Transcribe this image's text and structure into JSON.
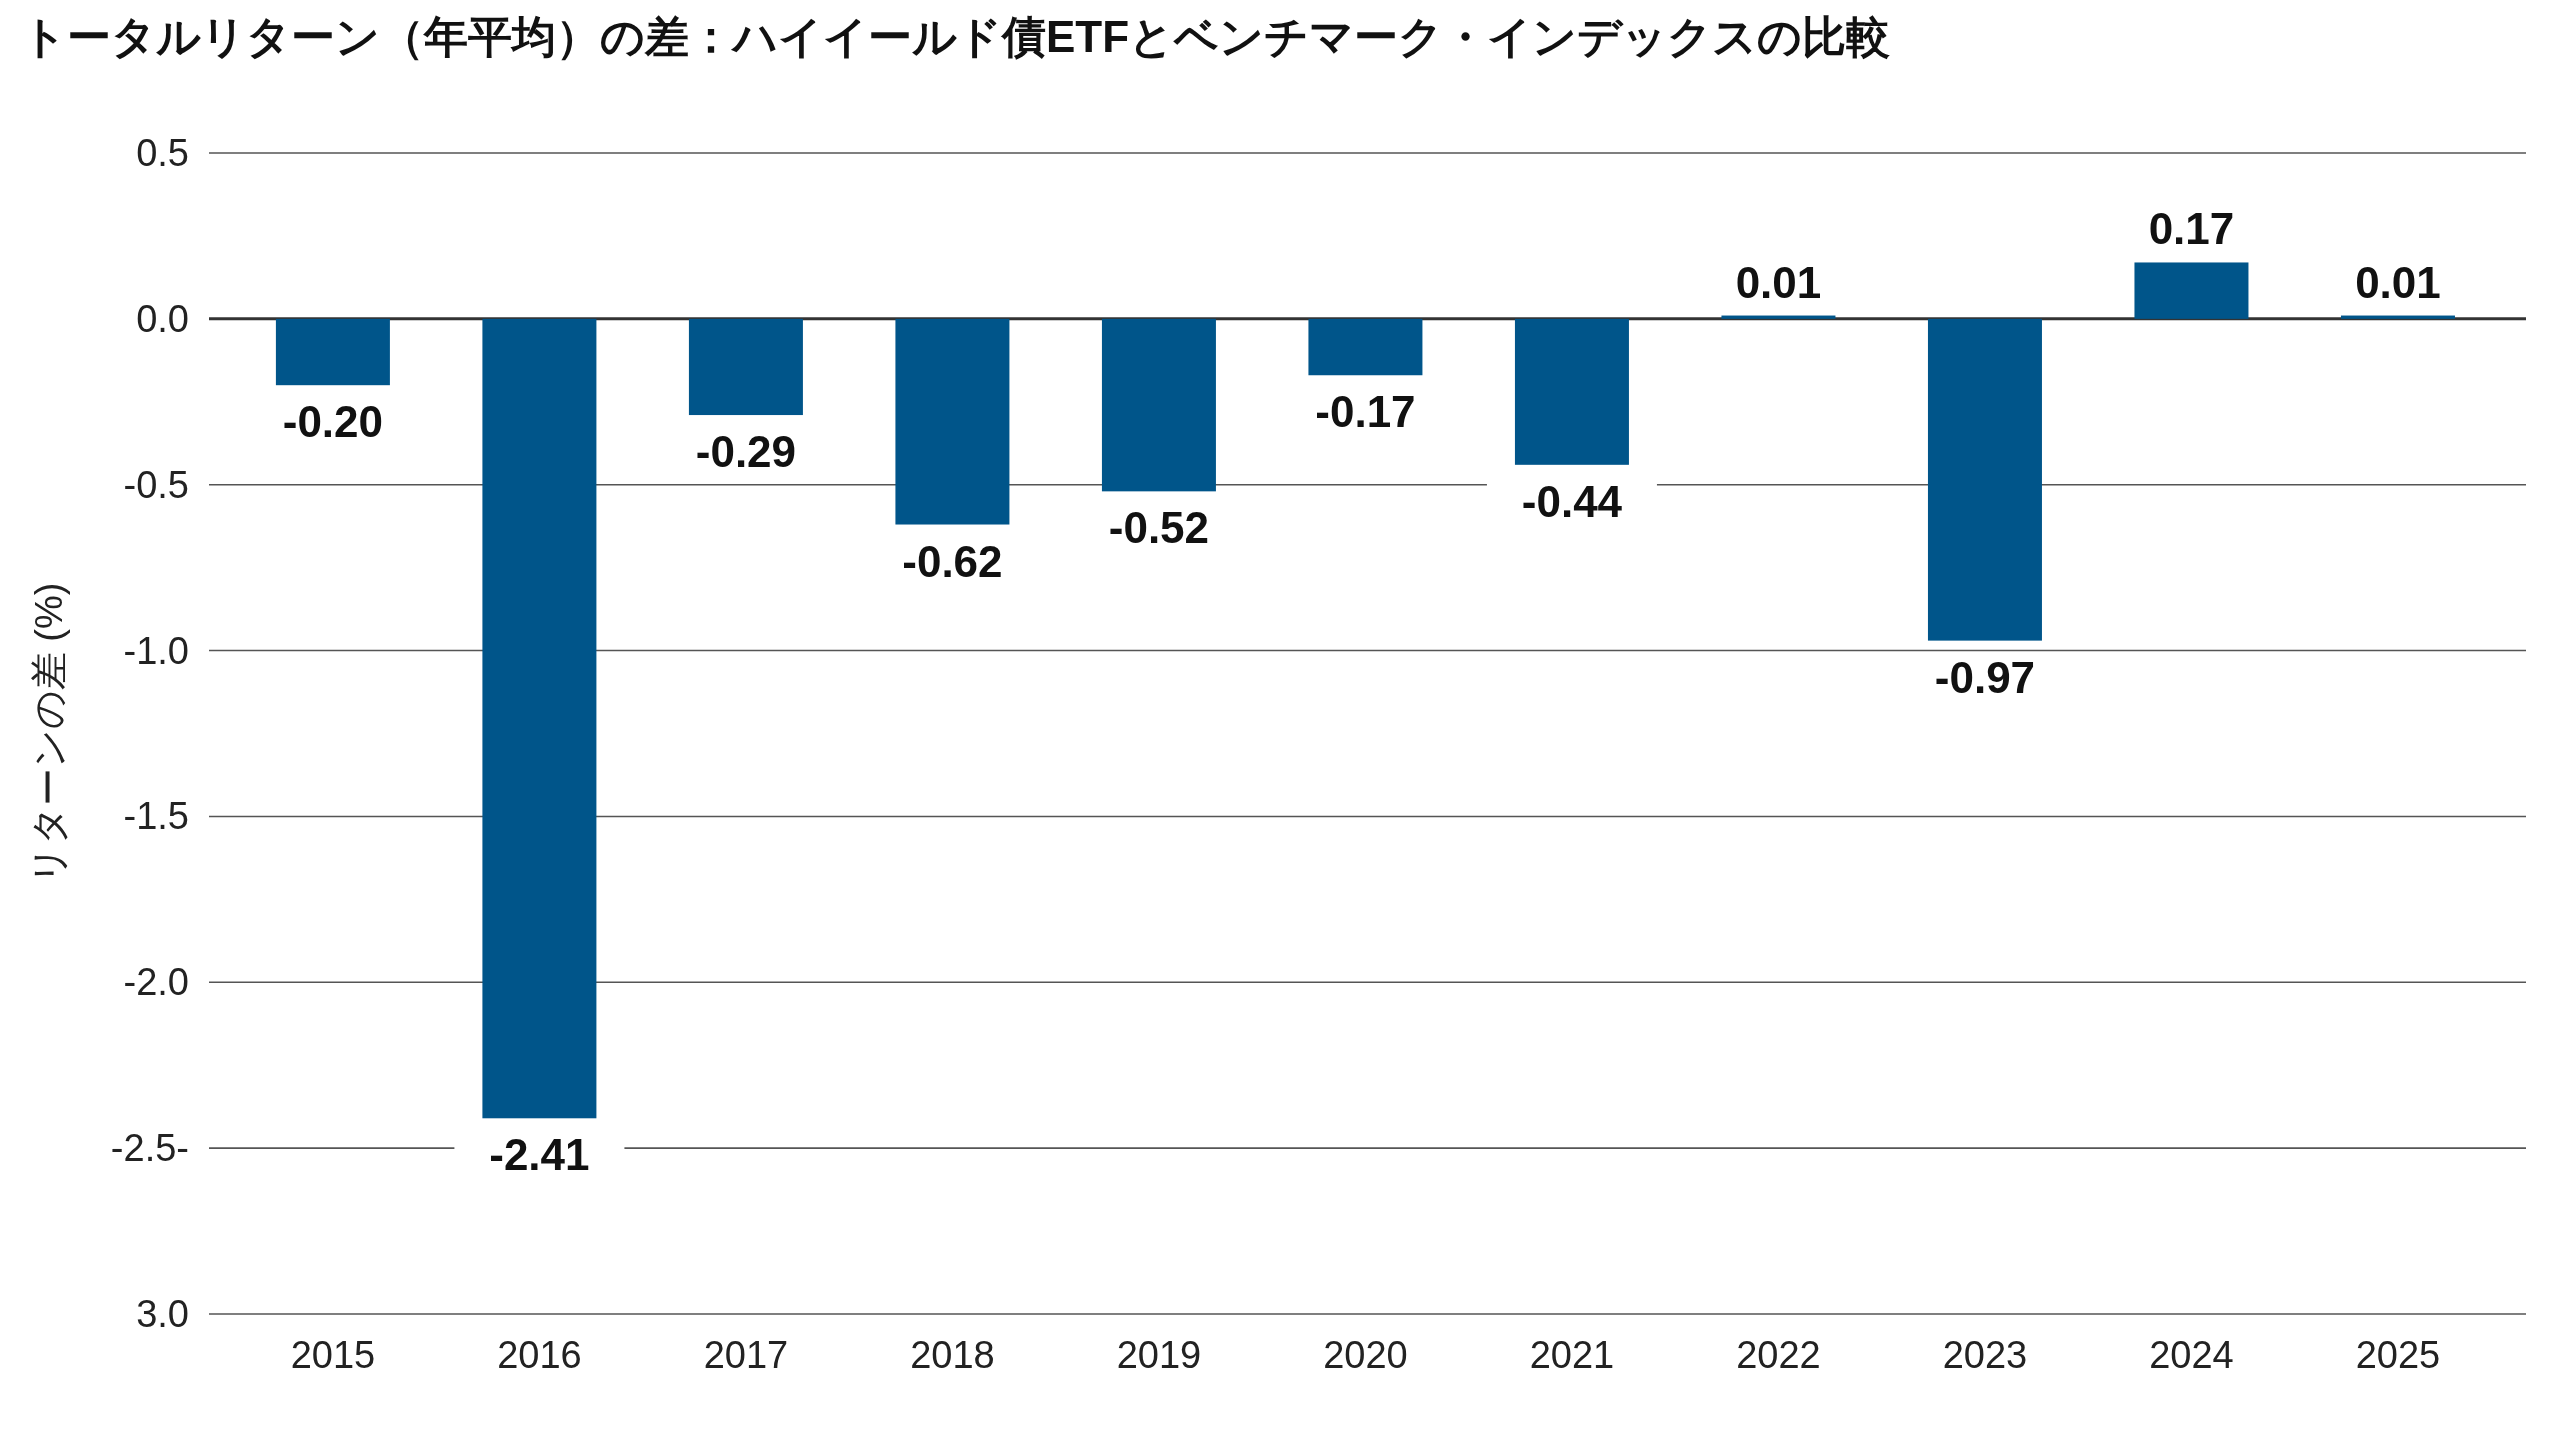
{
  "chart_data": {
    "type": "bar",
    "title": "トータルリターン（年平均）の差：ハイイールド債ETFとベンチマーク・インデックスの比較",
    "ylabel": "リターンの差 (%)",
    "categories": [
      "2015",
      "2016",
      "2017",
      "2018",
      "2019",
      "2020",
      "2021",
      "2022",
      "2023",
      "2024",
      "2025"
    ],
    "values": [
      -0.2,
      -2.41,
      -0.29,
      -0.62,
      -0.52,
      -0.17,
      -0.44,
      0.01,
      -0.97,
      0.17,
      0.01
    ],
    "value_labels": [
      "-0.20",
      "-2.41",
      "-0.29",
      "-0.62",
      "-0.52",
      "-0.17",
      "-0.44",
      "0.01",
      "-0.97",
      "0.17",
      "0.01"
    ],
    "color": "#00558a",
    "ylim": [
      -3.0,
      0.5
    ],
    "yticks": [
      0.5,
      {
        "value": 0,
        "label": "0.0"
      },
      -0.5,
      {
        "value": -1,
        "label": "-1.0"
      },
      -1.5,
      {
        "value": -2,
        "label": "-2.0"
      },
      {
        "value": -2.5,
        "label": "-2.5-"
      },
      {
        "value": -3.0,
        "label": "3.0"
      }
    ],
    "grid": "y"
  }
}
